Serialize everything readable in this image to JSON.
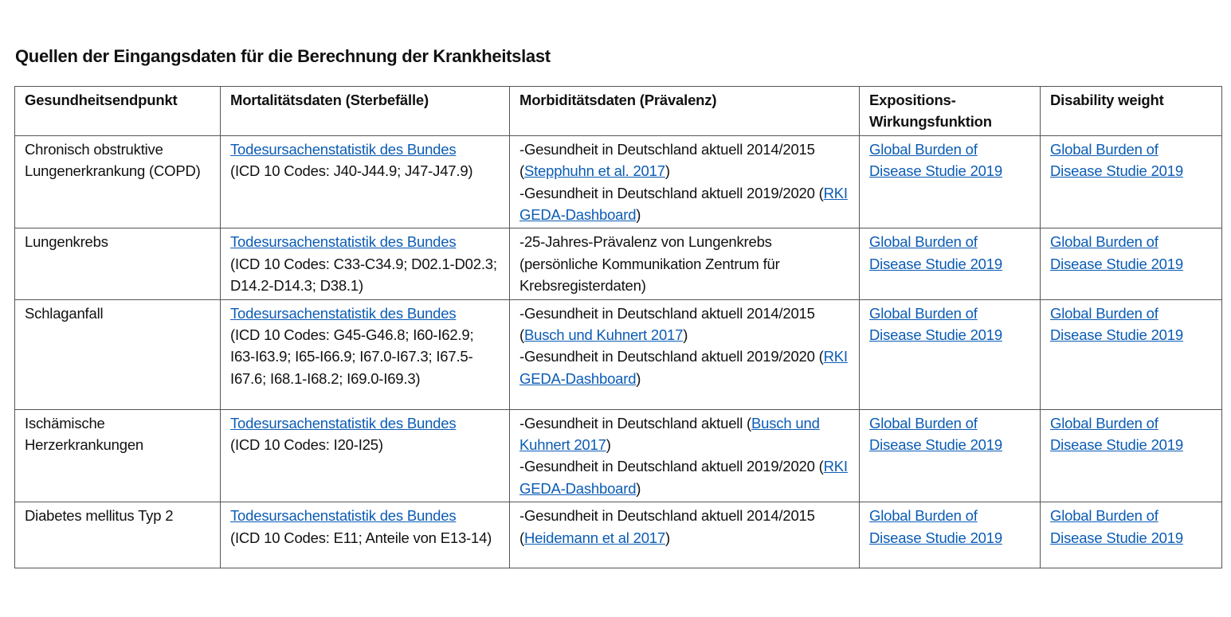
{
  "title": "Quellen der Eingangsdaten für die Berechnung der Krankheitslast",
  "headers": [
    "Gesundheitsendpunkt",
    "Mortalitätsdaten (Sterbefälle)",
    "Morbiditätsdaten (Prävalenz)",
    "Expositions-Wirkungsfunktion",
    "Disability weight"
  ],
  "link_color": "#0b5cb5",
  "rows": [
    {
      "endpoint": "Chronisch obstruktive Lungenerkrankung (COPD)",
      "mort_link": "Todesursachenstatistik des Bundes",
      "mort_codes": "(ICD 10 Codes: J40-J44.9; J47-J47.9)",
      "morb": [
        {
          "pre": "-Gesundheit in Deutschland aktuell 2014/2015 (",
          "link": "Stepphuhn et al. 2017",
          "post": ")"
        },
        {
          "pre": "-Gesundheit in Deutschland aktuell 2019/2020 (",
          "link": "RKI GEDA-Dashboard",
          "post": ")"
        }
      ],
      "ewf": "Global Burden of Disease Studie 2019",
      "dw": "Global Burden of Disease Studie 2019"
    },
    {
      "endpoint": "Lungenkrebs",
      "mort_link": "Todesursachenstatistik des Bundes",
      "mort_codes": "(ICD 10 Codes: C33-C34.9; D02.1-D02.3; D14.2-D14.3; D38.1)",
      "morb": [
        {
          "pre": "-25-Jahres-Prävalenz von Lungenkrebs (persönliche Kommunikation Zentrum für Krebsregisterdaten)",
          "link": "",
          "post": ""
        }
      ],
      "ewf": "Global Burden of Disease Studie 2019",
      "dw": "Global Burden of Disease Studie 2019"
    },
    {
      "endpoint": "Schlaganfall",
      "mort_link": "Todesursachenstatistik des Bundes",
      "mort_codes": "(ICD 10 Codes: G45-G46.8; I60-I62.9; I63-I63.9; I65-I66.9; I67.0-I67.3; I67.5-I67.6; I68.1-I68.2; I69.0-I69.3)",
      "morb": [
        {
          "pre": "-Gesundheit in Deutschland aktuell 2014/2015 (",
          "link": "Busch und Kuhnert 2017",
          "post": ")"
        },
        {
          "pre": "-Gesundheit in Deutschland aktuell 2019/2020 (",
          "link": "RKI GEDA-Dashboard",
          "post": ")"
        }
      ],
      "ewf": "Global Burden of Disease Studie 2019",
      "dw": "Global Burden of Disease Studie 2019"
    },
    {
      "endpoint": "Ischämische Herzerkrankungen",
      "mort_link": "Todesursachenstatistik des Bundes",
      "mort_codes": "(ICD 10 Codes: I20-I25)",
      "morb": [
        {
          "pre": "-Gesundheit in Deutschland aktuell (",
          "link": "Busch und Kuhnert 2017",
          "post": ")"
        },
        {
          "pre": "-Gesundheit in Deutschland aktuell 2019/2020 (",
          "link": "RKI GEDA-Dashboard",
          "post": ")"
        }
      ],
      "ewf": "Global Burden of Disease Studie 2019",
      "dw": "Global Burden of Disease Studie 2019"
    },
    {
      "endpoint": "Diabetes mellitus Typ 2",
      "mort_link": "Todesursachenstatistik des Bundes",
      "mort_codes": "(ICD 10 Codes: E11; Anteile von E13-14)",
      "morb": [
        {
          "pre": "-Gesundheit in Deutschland aktuell 2014/2015 (",
          "link": "Heidemann et al 2017",
          "post": ")"
        }
      ],
      "ewf": "Global Burden of Disease Studie 2019",
      "dw": "Global Burden of Disease Studie 2019"
    }
  ]
}
